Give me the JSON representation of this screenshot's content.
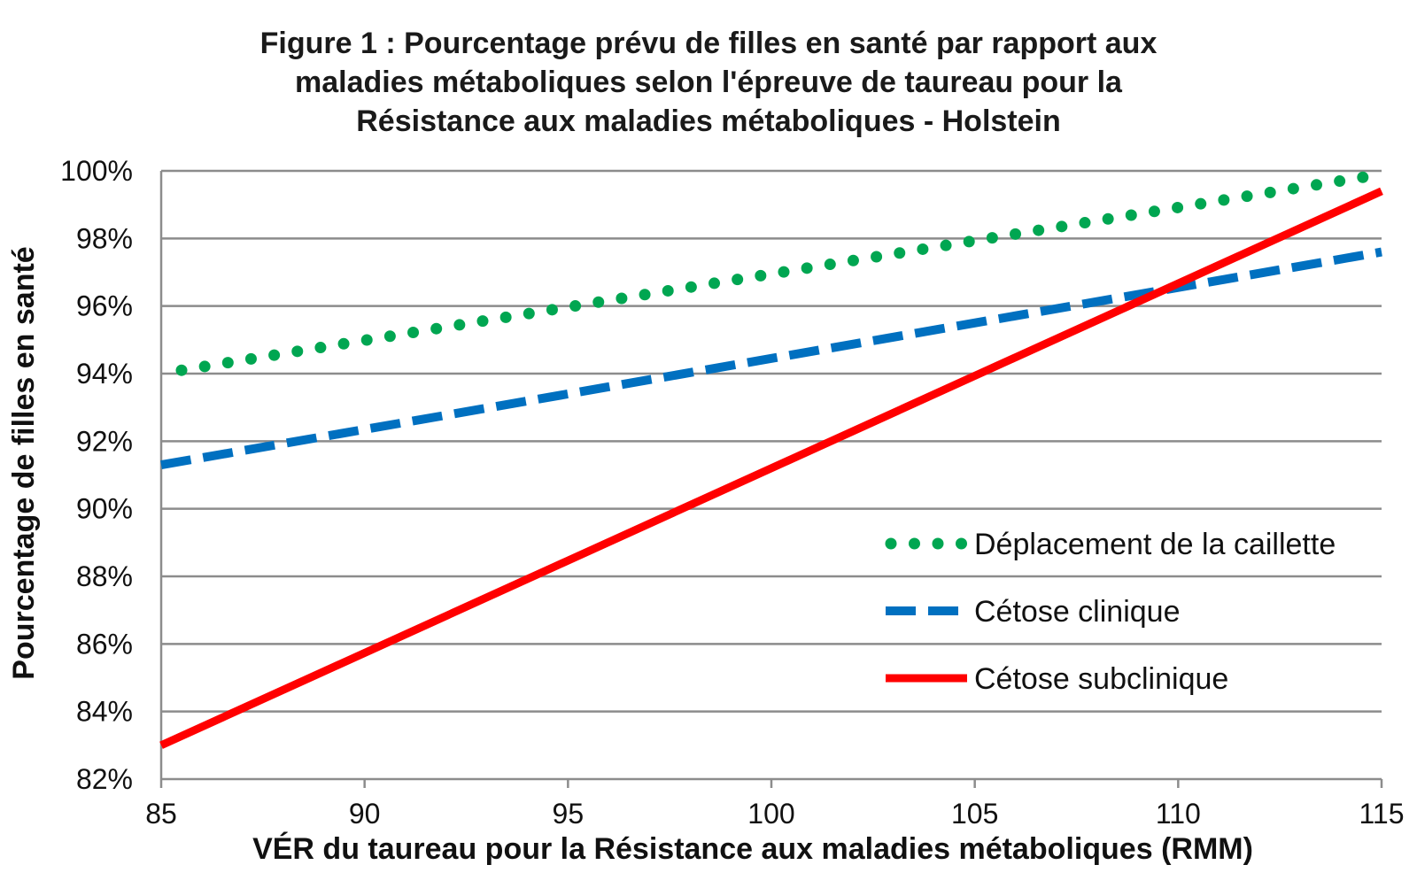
{
  "chart_data": {
    "type": "line",
    "title_lines": [
      "Figure 1 : Pourcentage prévu de filles en santé par rapport aux",
      "maladies métaboliques selon l'épreuve de taureau pour la",
      "Résistance aux maladies métaboliques - Holstein"
    ],
    "xlabel": "VÉR du taureau pour la Résistance aux maladies métaboliques (RMM)",
    "ylabel": "Pourcentage de filles en santé",
    "xlim": [
      85,
      115
    ],
    "ylim": [
      82,
      100
    ],
    "x_ticks": [
      85,
      90,
      95,
      100,
      105,
      110,
      115
    ],
    "x_tick_labels": [
      "85",
      "90",
      "95",
      "100",
      "105",
      "110",
      "115"
    ],
    "y_ticks": [
      82,
      84,
      86,
      88,
      90,
      92,
      94,
      96,
      98,
      100
    ],
    "y_tick_labels": [
      "82%",
      "84%",
      "86%",
      "88%",
      "90%",
      "92%",
      "94%",
      "96%",
      "98%",
      "100%"
    ],
    "grid": "horizontal",
    "legend_position": "bottom-right",
    "series": [
      {
        "name": "Déplacement de la caillette",
        "style": "dotted",
        "color": "#00a651",
        "x": [
          85.5,
          115
        ],
        "y": [
          94.1,
          99.9
        ]
      },
      {
        "name": "Cétose clinique",
        "style": "dashed",
        "color": "#0070c0",
        "x": [
          85,
          115
        ],
        "y": [
          91.3,
          97.6
        ]
      },
      {
        "name": "Cétose subclinique",
        "style": "solid",
        "color": "#ff0000",
        "x": [
          85,
          115
        ],
        "y": [
          83.0,
          99.4
        ]
      }
    ]
  }
}
